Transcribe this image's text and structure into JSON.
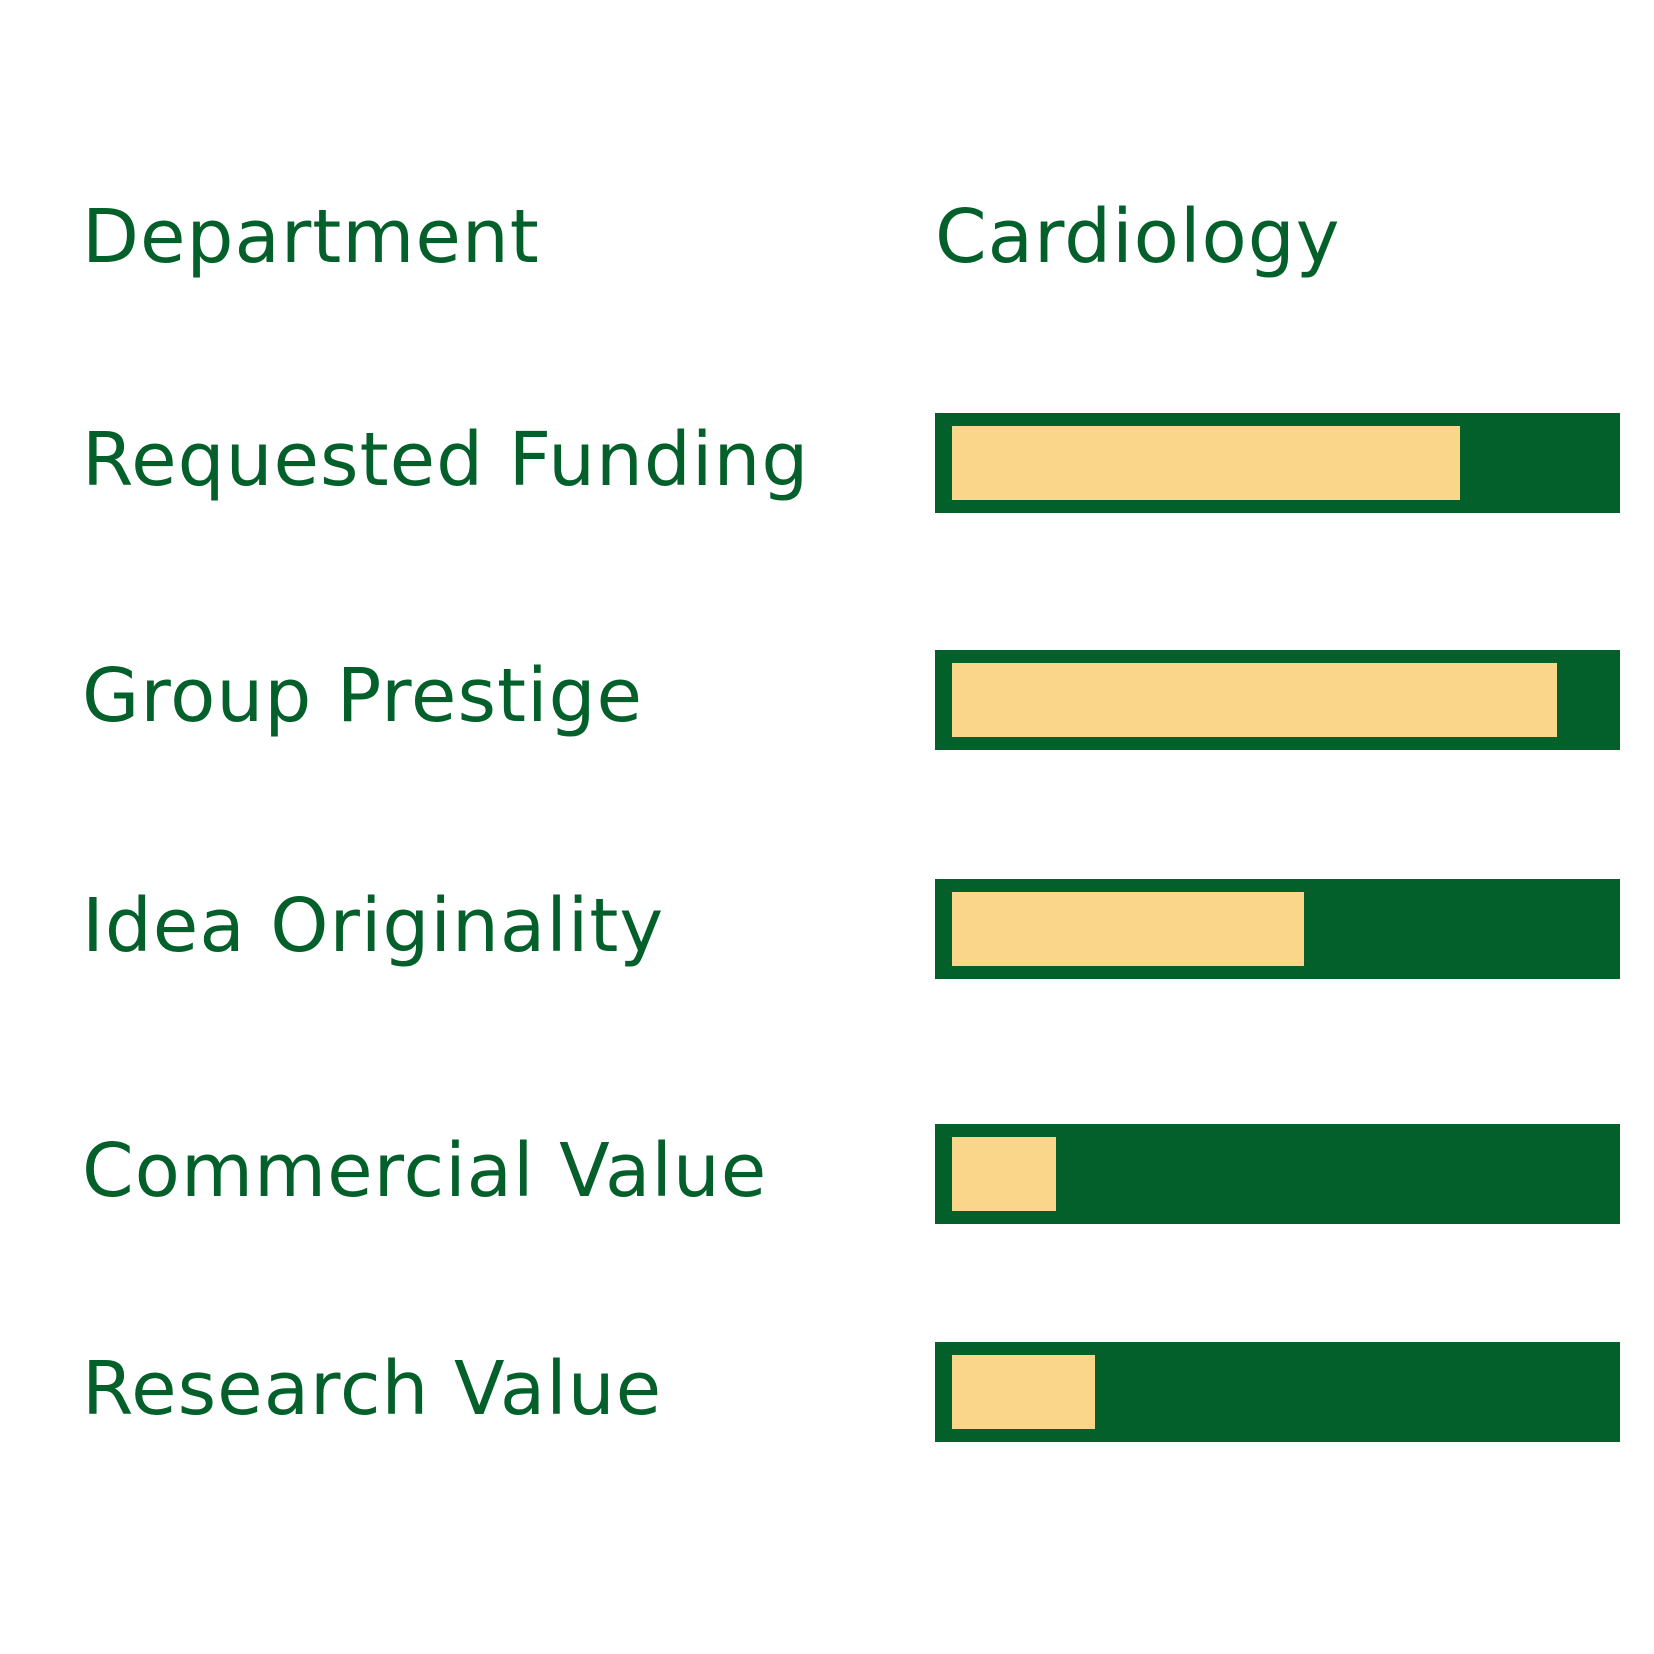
{
  "header": {
    "label": "Department",
    "value": "Cardiology"
  },
  "colors": {
    "text": "#04602b",
    "track": "#04602b",
    "fill": "#fad68a",
    "background": "#ffffff"
  },
  "chart_data": {
    "type": "bar",
    "orientation": "horizontal",
    "value_scale": "fraction of full bar (0-1)",
    "categories": [
      "Requested Funding",
      "Group Prestige",
      "Idea Originality",
      "Commercial Value",
      "Research Value"
    ],
    "values": [
      0.78,
      0.93,
      0.54,
      0.16,
      0.22
    ],
    "xlim": [
      0,
      1
    ],
    "grid": false,
    "legend": "none"
  }
}
